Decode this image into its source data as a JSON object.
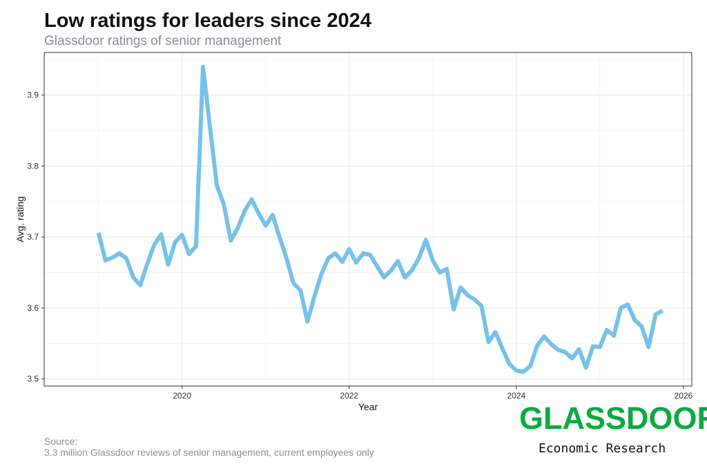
{
  "title": "Low ratings for leaders since 2024",
  "subtitle": "Glassdoor ratings of senior management",
  "source_label": "Source:",
  "source_text": "3.3 million Glassdoor reviews of senior management, current employees only",
  "logo": {
    "text": "GLASSDOOR",
    "tm": "™",
    "subtitle": "Economic Research",
    "color": "#0caa41"
  },
  "colors": {
    "line": "#77c2ea",
    "grid": "#e6e6e6",
    "panel_border": "#333333"
  },
  "chart_data": {
    "type": "line",
    "title": "Low ratings for leaders since 2024",
    "subtitle": "Glassdoor ratings of senior management",
    "xlabel": "Year",
    "ylabel": "Avg. rating",
    "xlim": [
      2018.35,
      2026.1
    ],
    "ylim": [
      3.49,
      3.96
    ],
    "x_ticks": [
      2020,
      2022,
      2024,
      2026
    ],
    "y_ticks": [
      3.5,
      3.6,
      3.7,
      3.8,
      3.9
    ],
    "grid": true,
    "legend": "none",
    "series": [
      {
        "x": [
          2019.0,
          2019.083,
          2019.167,
          2019.25,
          2019.333,
          2019.417,
          2019.5,
          2019.583,
          2019.667,
          2019.75,
          2019.833,
          2019.917,
          2020.0,
          2020.083,
          2020.167,
          2020.25,
          2020.333,
          2020.417,
          2020.5,
          2020.583,
          2020.667,
          2020.75,
          2020.833,
          2020.917,
          2021.0,
          2021.083,
          2021.167,
          2021.25,
          2021.333,
          2021.417,
          2021.5,
          2021.583,
          2021.667,
          2021.75,
          2021.833,
          2021.917,
          2022.0,
          2022.083,
          2022.167,
          2022.25,
          2022.333,
          2022.417,
          2022.5,
          2022.583,
          2022.667,
          2022.75,
          2022.833,
          2022.917,
          2023.0,
          2023.083,
          2023.167,
          2023.25,
          2023.333,
          2023.417,
          2023.5,
          2023.583,
          2023.667,
          2023.75,
          2023.833,
          2023.917,
          2024.0,
          2024.083,
          2024.167,
          2024.25,
          2024.333,
          2024.417,
          2024.5,
          2024.583,
          2024.667,
          2024.75,
          2024.833,
          2024.917,
          2025.0,
          2025.083,
          2025.167,
          2025.25,
          2025.333,
          2025.417,
          2025.5,
          2025.583,
          2025.667,
          2025.75
        ],
        "y": [
          3.706,
          3.667,
          3.671,
          3.677,
          3.67,
          3.643,
          3.632,
          3.662,
          3.689,
          3.704,
          3.661,
          3.693,
          3.703,
          3.676,
          3.687,
          3.94,
          3.856,
          3.772,
          3.746,
          3.695,
          3.713,
          3.737,
          3.753,
          3.733,
          3.716,
          3.731,
          3.7,
          3.67,
          3.635,
          3.625,
          3.581,
          3.616,
          3.648,
          3.67,
          3.677,
          3.665,
          3.683,
          3.664,
          3.677,
          3.675,
          3.659,
          3.643,
          3.653,
          3.666,
          3.643,
          3.653,
          3.67,
          3.696,
          3.667,
          3.65,
          3.655,
          3.598,
          3.629,
          3.618,
          3.612,
          3.603,
          3.552,
          3.566,
          3.543,
          3.521,
          3.512,
          3.51,
          3.518,
          3.547,
          3.56,
          3.549,
          3.541,
          3.538,
          3.529,
          3.542,
          3.516,
          3.546,
          3.545,
          3.569,
          3.561,
          3.6,
          3.605,
          3.583,
          3.574,
          3.545,
          3.591,
          3.596
        ]
      }
    ]
  }
}
